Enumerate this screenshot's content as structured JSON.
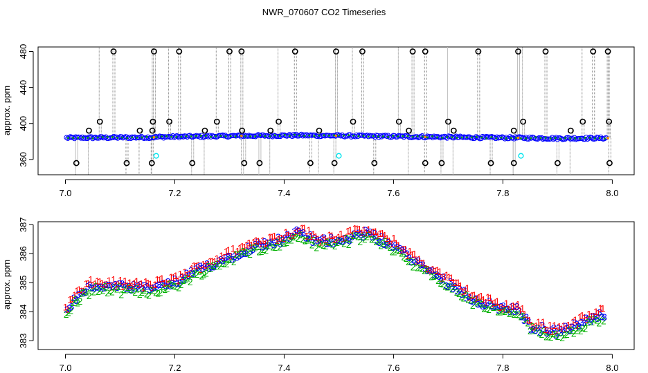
{
  "page": {
    "title": "NWR_070607  CO2 Timeseries"
  },
  "chart_data": [
    {
      "type": "scatter",
      "title": "",
      "xlabel": "",
      "ylabel": "approx. ppm",
      "xlim": [
        6.95,
        8.04
      ],
      "ylim": [
        343,
        485
      ],
      "x_ticks": [
        "7.0",
        "7.2",
        "7.4",
        "7.6",
        "7.8",
        "8.0"
      ],
      "y_ticks": [
        "360",
        "400",
        "440",
        "480"
      ],
      "grid": false,
      "colors": {
        "baseline": "#0000ff",
        "overlay": "#00a000",
        "outlier_marker": "#000000",
        "spike_line": "#808080",
        "calibration": "#00e5ee",
        "orange_accent": "#ff8c00"
      },
      "series": [
        {
          "values_note_baseline": "mean level of dense blue circles",
          "baseline": [
            {
              "x": 7.0,
              "y": 384
            },
            {
              "x": 7.16,
              "y": 384.6
            },
            {
              "x": 7.17,
              "y": 385
            },
            {
              "x": 7.32,
              "y": 386.2
            },
            {
              "x": 7.43,
              "y": 386.8
            },
            {
              "x": 7.5,
              "y": 386.4
            },
            {
              "x": 7.6,
              "y": 385.6
            },
            {
              "x": 7.66,
              "y": 385.2
            },
            {
              "x": 7.75,
              "y": 384.4
            },
            {
              "x": 7.84,
              "y": 384
            },
            {
              "x": 7.9,
              "y": 383.4
            },
            {
              "x": 7.99,
              "y": 383.8
            }
          ],
          "outliers_high": [
            7.088,
            7.162,
            7.208,
            7.3,
            7.322,
            7.42,
            7.495,
            7.543,
            7.635,
            7.658,
            7.755,
            7.828,
            7.878,
            7.965,
            7.992
          ],
          "outliers_mid_402": [
            7.063,
            7.16,
            7.19,
            7.277,
            7.39,
            7.526,
            7.61,
            7.7,
            7.837,
            7.946,
            7.994
          ],
          "outliers_mid_392": [
            7.043,
            7.136,
            7.159,
            7.255,
            7.323,
            7.375,
            7.464,
            7.628,
            7.71,
            7.82,
            7.924
          ],
          "outliers_low": [
            7.02,
            7.112,
            7.158,
            7.232,
            7.327,
            7.355,
            7.448,
            7.492,
            7.565,
            7.658,
            7.688,
            7.778,
            7.82,
            7.9,
            7.995
          ],
          "calibration_points": [
            {
              "x": 7.166,
              "y": 364
            },
            {
              "x": 7.5,
              "y": 364
            },
            {
              "x": 7.833,
              "y": 364
            }
          ]
        }
      ]
    },
    {
      "type": "scatter",
      "title": "",
      "xlabel": "",
      "ylabel": "approx. ppm",
      "xlim": [
        6.95,
        8.04
      ],
      "ylim": [
        382.7,
        387.1
      ],
      "x_ticks": [
        "7.0",
        "7.2",
        "7.4",
        "7.6",
        "7.8",
        "8.0"
      ],
      "y_ticks": [
        "383",
        "384",
        "385",
        "386",
        "387"
      ],
      "grid": false,
      "markers": [
        "1",
        "2",
        "3"
      ],
      "colors": {
        "1": "#ff0000",
        "2": "#00b000",
        "3": "#0000ff"
      },
      "series": [
        {
          "name": "1",
          "trend": [
            {
              "x": 7.0,
              "y": 384.0
            },
            {
              "x": 7.02,
              "y": 384.5
            },
            {
              "x": 7.05,
              "y": 384.9
            },
            {
              "x": 7.1,
              "y": 384.85
            },
            {
              "x": 7.15,
              "y": 384.8
            },
            {
              "x": 7.2,
              "y": 385.0
            },
            {
              "x": 7.25,
              "y": 385.5
            },
            {
              "x": 7.3,
              "y": 385.9
            },
            {
              "x": 7.35,
              "y": 386.3
            },
            {
              "x": 7.4,
              "y": 386.5
            },
            {
              "x": 7.43,
              "y": 386.75
            },
            {
              "x": 7.46,
              "y": 386.4
            },
            {
              "x": 7.5,
              "y": 386.5
            },
            {
              "x": 7.55,
              "y": 386.7
            },
            {
              "x": 7.6,
              "y": 386.3
            },
            {
              "x": 7.65,
              "y": 385.6
            },
            {
              "x": 7.7,
              "y": 385.0
            },
            {
              "x": 7.75,
              "y": 384.4
            },
            {
              "x": 7.8,
              "y": 384.1
            },
            {
              "x": 7.83,
              "y": 384.05
            },
            {
              "x": 7.85,
              "y": 383.5
            },
            {
              "x": 7.9,
              "y": 383.3
            },
            {
              "x": 7.93,
              "y": 383.5
            },
            {
              "x": 7.98,
              "y": 383.9
            }
          ]
        }
      ]
    }
  ]
}
